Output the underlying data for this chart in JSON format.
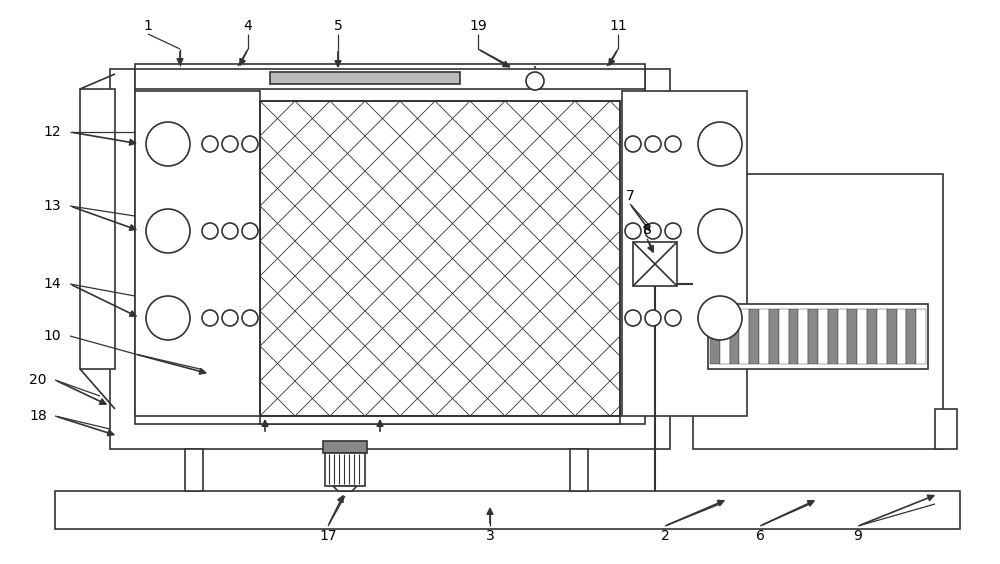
{
  "bg": "#ffffff",
  "lc": "#333333",
  "fw": 10.0,
  "fh": 5.64,
  "dpi": 100
}
